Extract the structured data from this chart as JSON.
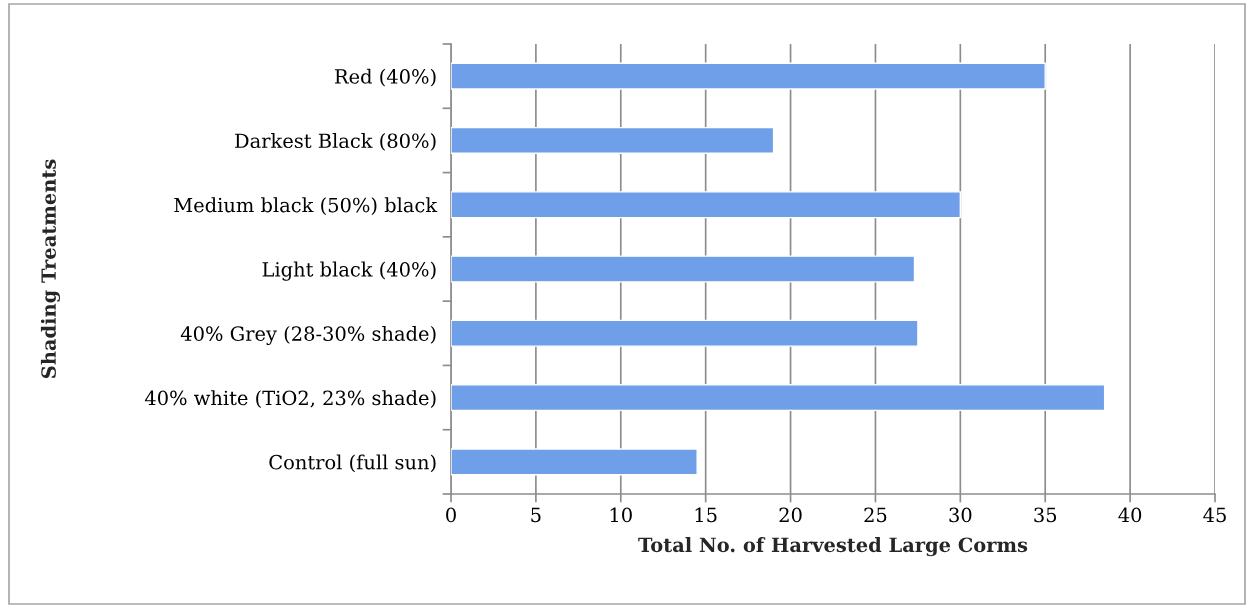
{
  "chart_data": {
    "type": "bar",
    "orientation": "horizontal",
    "xlabel": "Total No. of Harvested Large Corms",
    "ylabel": "Shading Treatments",
    "categories": [
      "Red (40%)",
      "Darkest Black (80%)",
      "Medium black (50%) black",
      "Light black (40%)",
      "40% Grey (28-30% shade)",
      "40% white (TiO2, 23% shade)",
      "Control (full sun)"
    ],
    "values": [
      35,
      19,
      30,
      27.3,
      27.5,
      38.5,
      14.5
    ],
    "color": "#6f9fe8",
    "xlim": [
      0,
      45
    ],
    "xticks": [
      0,
      5,
      10,
      15,
      20,
      25,
      30,
      35,
      40,
      45
    ],
    "grid": "x"
  }
}
